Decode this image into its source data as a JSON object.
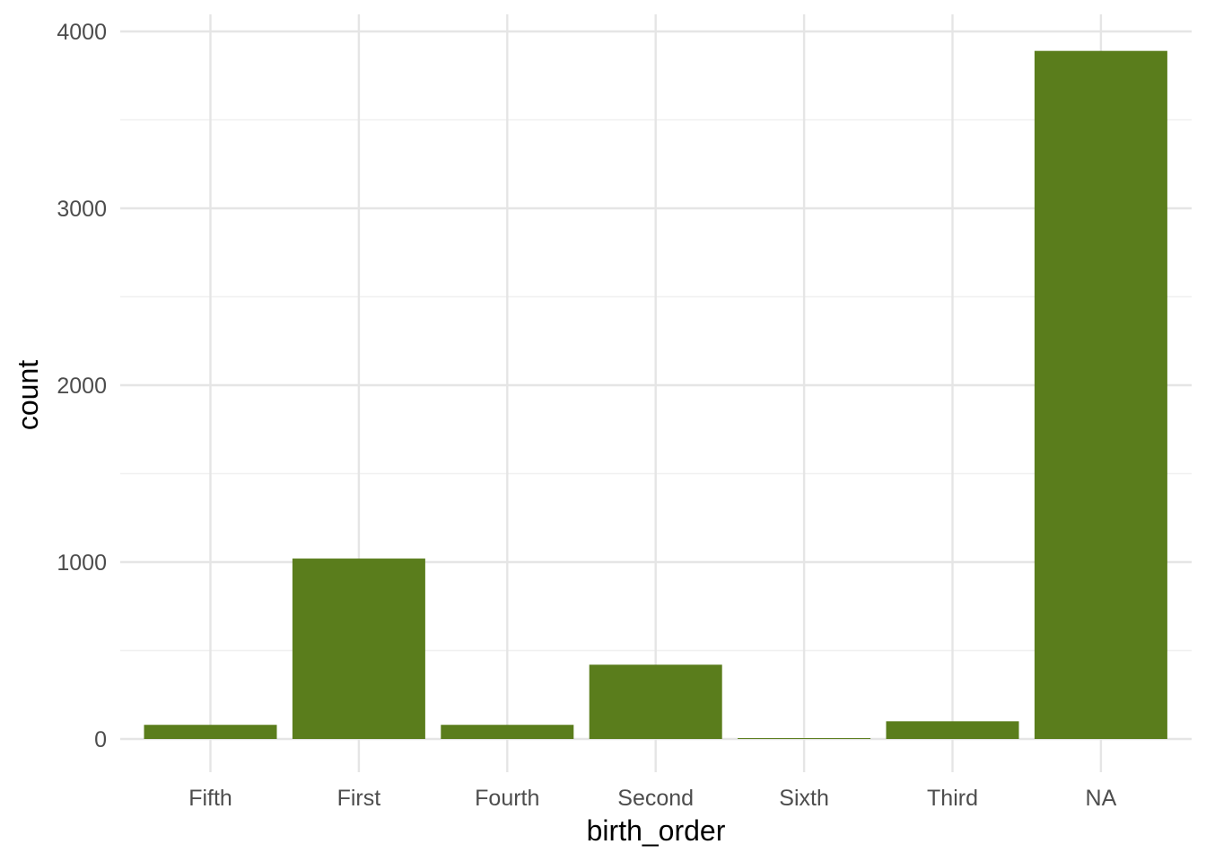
{
  "chart_data": {
    "type": "bar",
    "title": "",
    "xlabel": "birth_order",
    "ylabel": "count",
    "categories": [
      "Fifth",
      "First",
      "Fourth",
      "Second",
      "Sixth",
      "Third",
      "NA"
    ],
    "values": [
      80,
      1020,
      80,
      420,
      5,
      100,
      3890
    ],
    "ylim": [
      0,
      4000
    ],
    "y_ticks": [
      0,
      1000,
      2000,
      3000,
      4000
    ],
    "y_tick_labels": [
      "0",
      "1000",
      "2000",
      "3000",
      "4000"
    ],
    "bar_color": "#5a7d1c",
    "grid": true,
    "legend": "none"
  }
}
